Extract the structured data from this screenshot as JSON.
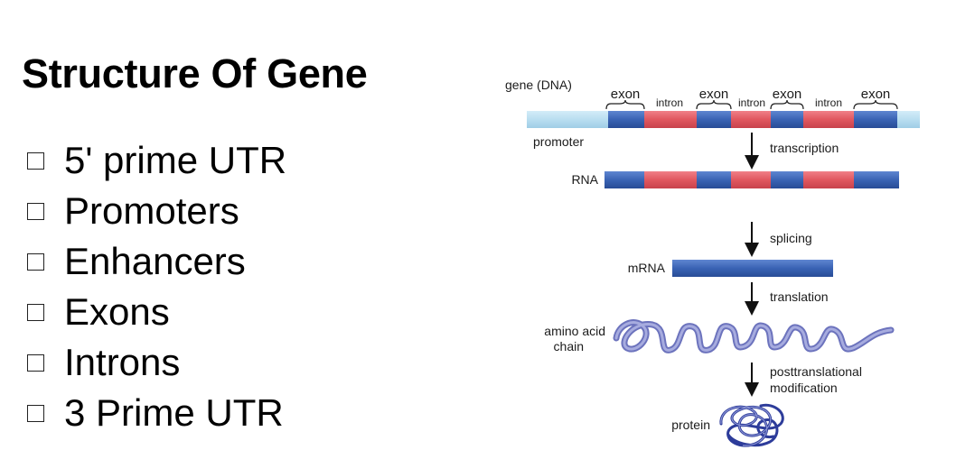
{
  "title": "Structure Of Gene",
  "bullets": [
    "5' prime UTR",
    "Promoters",
    "Enhancers",
    "Exons",
    "Introns",
    "3 Prime UTR"
  ],
  "diagram": {
    "gene_label": "gene (DNA)",
    "segment_labels": [
      "exon",
      "intron",
      "exon",
      "intron",
      "exon",
      "intron",
      "exon"
    ],
    "promoter_label": "promoter",
    "rna_label": "RNA",
    "mrna_label": "mRNA",
    "amino_label_1": "amino acid",
    "amino_label_2": "chain",
    "protein_label": "protein",
    "step_transcription": "transcription",
    "step_splicing": "splicing",
    "step_translation": "translation",
    "step_ptm_1": "posttranslational",
    "step_ptm_2": "modification"
  },
  "colors": {
    "exon": "#3a63b4",
    "intron": "#e0575f",
    "promoter": "#b9def0",
    "chain": "#8289c9",
    "protein": "#2d3c9a"
  }
}
